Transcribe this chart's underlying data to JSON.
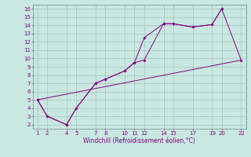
{
  "line1_x": [
    1,
    2,
    4,
    5,
    7,
    8,
    10,
    11,
    12,
    14,
    15,
    17,
    19,
    20,
    22
  ],
  "line1_y": [
    5,
    3,
    2,
    4,
    7,
    7.5,
    8.5,
    9.5,
    9.8,
    14.2,
    14.2,
    13.8,
    14.1,
    16,
    9.8
  ],
  "line2_x": [
    1,
    2,
    4,
    5,
    7,
    8,
    10,
    11,
    12,
    14,
    15,
    17,
    19,
    20
  ],
  "line2_y": [
    5,
    3,
    2,
    4,
    7,
    7.5,
    8.5,
    9.5,
    12.5,
    14.2,
    14.2,
    13.8,
    14.1,
    16
  ],
  "line3_x": [
    1,
    22
  ],
  "line3_y": [
    5,
    9.8
  ],
  "bg_color": "#c8e8e0",
  "line_color": "#880088",
  "grid_color": "#99bbbb",
  "xlabel": "Windchill (Refroidissement éolien,°C)",
  "xlim": [
    0.5,
    22.5
  ],
  "ylim": [
    1.5,
    16.5
  ],
  "xticks": [
    1,
    2,
    4,
    5,
    7,
    8,
    10,
    11,
    12,
    14,
    15,
    17,
    19,
    20,
    22
  ],
  "yticks": [
    2,
    3,
    4,
    5,
    6,
    7,
    8,
    9,
    10,
    11,
    12,
    13,
    14,
    15,
    16
  ]
}
